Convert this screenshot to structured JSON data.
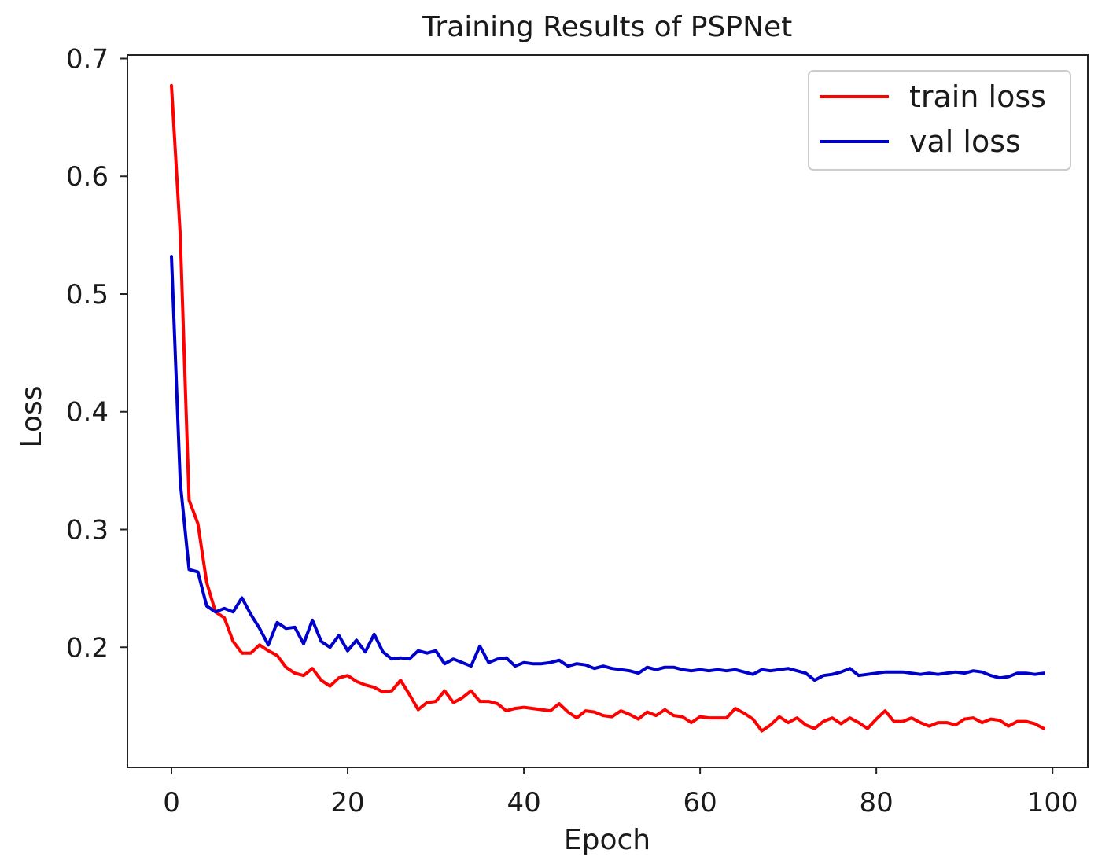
{
  "chart_data": {
    "type": "line",
    "title": "Training Results of PSPNet",
    "xlabel": "Epoch",
    "ylabel": "Loss",
    "xlim": [
      -5,
      104
    ],
    "ylim": [
      0.098,
      0.703
    ],
    "x_ticks": [
      0,
      20,
      40,
      60,
      80,
      100
    ],
    "x_tick_labels": [
      "0",
      "20",
      "40",
      "60",
      "80",
      "100"
    ],
    "y_ticks": [
      0.2,
      0.3,
      0.4,
      0.5,
      0.6,
      0.7
    ],
    "y_tick_labels": [
      "0.2",
      "0.3",
      "0.4",
      "0.5",
      "0.6",
      "0.7"
    ],
    "grid": false,
    "legend": {
      "position": "upper-right",
      "entries": [
        {
          "label": "train loss",
          "color": "#ff0000"
        },
        {
          "label": "val loss",
          "color": "#0000cc"
        }
      ]
    },
    "series": [
      {
        "name": "train loss",
        "color": "#ff0000",
        "x": [
          0,
          1,
          2,
          3,
          4,
          5,
          6,
          7,
          8,
          9,
          10,
          11,
          12,
          13,
          14,
          15,
          16,
          17,
          18,
          19,
          20,
          21,
          22,
          23,
          24,
          25,
          26,
          27,
          28,
          29,
          30,
          31,
          32,
          33,
          34,
          35,
          36,
          37,
          38,
          39,
          40,
          41,
          42,
          43,
          44,
          45,
          46,
          47,
          48,
          49,
          50,
          51,
          52,
          53,
          54,
          55,
          56,
          57,
          58,
          59,
          60,
          61,
          62,
          63,
          64,
          65,
          66,
          67,
          68,
          69,
          70,
          71,
          72,
          73,
          74,
          75,
          76,
          77,
          78,
          79,
          80,
          81,
          82,
          83,
          84,
          85,
          86,
          87,
          88,
          89,
          90,
          91,
          92,
          93,
          94,
          95,
          96,
          97,
          98,
          99
        ],
        "values": [
          0.677,
          0.55,
          0.325,
          0.305,
          0.255,
          0.23,
          0.225,
          0.205,
          0.195,
          0.195,
          0.202,
          0.197,
          0.193,
          0.183,
          0.178,
          0.176,
          0.182,
          0.172,
          0.167,
          0.174,
          0.176,
          0.171,
          0.168,
          0.166,
          0.162,
          0.163,
          0.172,
          0.16,
          0.147,
          0.153,
          0.154,
          0.163,
          0.153,
          0.157,
          0.163,
          0.154,
          0.154,
          0.152,
          0.146,
          0.148,
          0.149,
          0.148,
          0.147,
          0.146,
          0.152,
          0.145,
          0.14,
          0.146,
          0.145,
          0.142,
          0.141,
          0.146,
          0.143,
          0.139,
          0.145,
          0.142,
          0.147,
          0.142,
          0.141,
          0.136,
          0.141,
          0.14,
          0.14,
          0.14,
          0.148,
          0.144,
          0.139,
          0.129,
          0.134,
          0.141,
          0.136,
          0.14,
          0.134,
          0.131,
          0.137,
          0.14,
          0.135,
          0.14,
          0.136,
          0.131,
          0.139,
          0.146,
          0.137,
          0.137,
          0.14,
          0.136,
          0.133,
          0.136,
          0.136,
          0.134,
          0.139,
          0.14,
          0.136,
          0.139,
          0.138,
          0.133,
          0.137,
          0.137,
          0.135,
          0.131
        ]
      },
      {
        "name": "val loss",
        "color": "#0000cc",
        "x": [
          0,
          1,
          2,
          3,
          4,
          5,
          6,
          7,
          8,
          9,
          10,
          11,
          12,
          13,
          14,
          15,
          16,
          17,
          18,
          19,
          20,
          21,
          22,
          23,
          24,
          25,
          26,
          27,
          28,
          29,
          30,
          31,
          32,
          33,
          34,
          35,
          36,
          37,
          38,
          39,
          40,
          41,
          42,
          43,
          44,
          45,
          46,
          47,
          48,
          49,
          50,
          51,
          52,
          53,
          54,
          55,
          56,
          57,
          58,
          59,
          60,
          61,
          62,
          63,
          64,
          65,
          66,
          67,
          68,
          69,
          70,
          71,
          72,
          73,
          74,
          75,
          76,
          77,
          78,
          79,
          80,
          81,
          82,
          83,
          84,
          85,
          86,
          87,
          88,
          89,
          90,
          91,
          92,
          93,
          94,
          95,
          96,
          97,
          98,
          99
        ],
        "values": [
          0.532,
          0.34,
          0.266,
          0.264,
          0.235,
          0.23,
          0.233,
          0.23,
          0.242,
          0.228,
          0.216,
          0.202,
          0.221,
          0.216,
          0.217,
          0.203,
          0.223,
          0.205,
          0.2,
          0.21,
          0.197,
          0.206,
          0.196,
          0.211,
          0.196,
          0.19,
          0.191,
          0.19,
          0.197,
          0.195,
          0.197,
          0.186,
          0.19,
          0.187,
          0.184,
          0.201,
          0.187,
          0.19,
          0.191,
          0.184,
          0.187,
          0.186,
          0.186,
          0.187,
          0.189,
          0.184,
          0.186,
          0.185,
          0.182,
          0.184,
          0.182,
          0.181,
          0.18,
          0.178,
          0.183,
          0.181,
          0.183,
          0.183,
          0.181,
          0.18,
          0.181,
          0.18,
          0.181,
          0.18,
          0.181,
          0.179,
          0.177,
          0.181,
          0.18,
          0.181,
          0.182,
          0.18,
          0.178,
          0.172,
          0.176,
          0.177,
          0.179,
          0.182,
          0.176,
          0.177,
          0.178,
          0.179,
          0.179,
          0.179,
          0.178,
          0.177,
          0.178,
          0.177,
          0.178,
          0.179,
          0.178,
          0.18,
          0.179,
          0.176,
          0.174,
          0.175,
          0.178,
          0.178,
          0.177,
          0.178
        ]
      }
    ]
  }
}
